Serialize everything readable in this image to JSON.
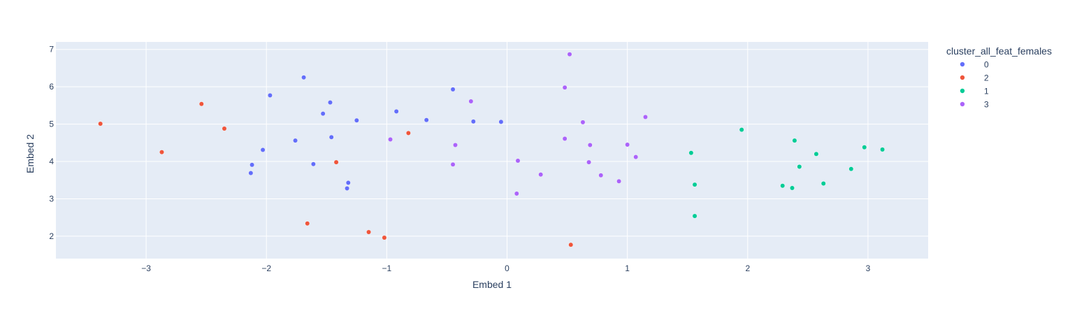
{
  "chart_data": {
    "type": "scatter",
    "title": "",
    "xlabel": "Embed 1",
    "ylabel": "Embed 2",
    "xlim": [
      -3.75,
      3.5
    ],
    "ylim": [
      1.4,
      7.2
    ],
    "xticks": [
      -3,
      -2,
      -1,
      0,
      1,
      2,
      3
    ],
    "yticks": [
      2,
      3,
      4,
      5,
      6,
      7
    ],
    "grid": true,
    "legend_title": "cluster_all_feat_females",
    "legend_position": "top-right-outside",
    "series": [
      {
        "name": "0",
        "color": "#636efa",
        "points": [
          [
            -1.69,
            6.25
          ],
          [
            -1.97,
            5.77
          ],
          [
            -1.47,
            5.58
          ],
          [
            -1.53,
            5.28
          ],
          [
            -1.25,
            5.1
          ],
          [
            -0.92,
            5.34
          ],
          [
            -0.67,
            5.11
          ],
          [
            -0.45,
            5.93
          ],
          [
            -0.28,
            5.07
          ],
          [
            -0.05,
            5.06
          ],
          [
            -1.76,
            4.56
          ],
          [
            -2.03,
            4.31
          ],
          [
            -1.46,
            4.65
          ],
          [
            -2.12,
            3.91
          ],
          [
            -2.13,
            3.69
          ],
          [
            -1.61,
            3.93
          ],
          [
            -1.32,
            3.43
          ],
          [
            -1.33,
            3.28
          ]
        ]
      },
      {
        "name": "2",
        "color": "#ef553b",
        "points": [
          [
            -3.38,
            5.01
          ],
          [
            -2.54,
            5.54
          ],
          [
            -2.35,
            4.88
          ],
          [
            -2.87,
            4.25
          ],
          [
            -1.42,
            3.98
          ],
          [
            -0.82,
            4.76
          ],
          [
            -1.66,
            2.34
          ],
          [
            -1.15,
            2.11
          ],
          [
            -1.02,
            1.96
          ],
          [
            0.53,
            1.77
          ]
        ]
      },
      {
        "name": "1",
        "color": "#00cc96",
        "points": [
          [
            1.95,
            4.85
          ],
          [
            2.39,
            4.56
          ],
          [
            2.97,
            4.38
          ],
          [
            3.12,
            4.32
          ],
          [
            2.57,
            4.2
          ],
          [
            1.53,
            4.23
          ],
          [
            2.43,
            3.86
          ],
          [
            2.86,
            3.8
          ],
          [
            1.56,
            3.38
          ],
          [
            2.63,
            3.41
          ],
          [
            2.29,
            3.35
          ],
          [
            2.37,
            3.29
          ],
          [
            1.56,
            2.54
          ]
        ]
      },
      {
        "name": "3",
        "color": "#ab63fa",
        "points": [
          [
            0.52,
            6.87
          ],
          [
            0.48,
            5.98
          ],
          [
            -0.3,
            5.61
          ],
          [
            0.63,
            5.05
          ],
          [
            1.15,
            5.19
          ],
          [
            0.48,
            4.61
          ],
          [
            -0.97,
            4.59
          ],
          [
            -0.43,
            4.44
          ],
          [
            0.69,
            4.44
          ],
          [
            1.0,
            4.45
          ],
          [
            1.07,
            4.12
          ],
          [
            0.09,
            4.02
          ],
          [
            0.68,
            3.98
          ],
          [
            -0.45,
            3.92
          ],
          [
            0.28,
            3.65
          ],
          [
            0.78,
            3.63
          ],
          [
            0.93,
            3.47
          ],
          [
            0.08,
            3.14
          ]
        ]
      }
    ]
  }
}
